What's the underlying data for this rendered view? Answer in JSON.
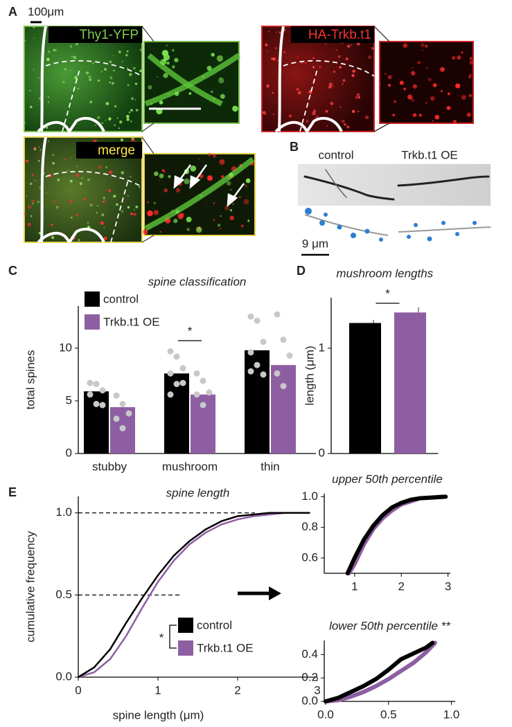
{
  "panel_labels": [
    "A",
    "B",
    "C",
    "D",
    "E"
  ],
  "panel_a": {
    "scale_bar": "100μm",
    "thy1_label": "Thy1-YFP",
    "ha_label": "HA-Trkb.t1",
    "merge_label": "merge"
  },
  "panel_b": {
    "control": "control",
    "oe": "Trkb.t1 OE",
    "scale_bar": "9 μm"
  },
  "chart_data": [
    {
      "type": "bar",
      "title": "spine classification",
      "ylabel": "total spines",
      "categories": [
        "stubby",
        "mushroom",
        "thin"
      ],
      "series": [
        {
          "name": "control",
          "color": "#000000",
          "values": [
            5.9,
            7.6,
            9.8
          ],
          "points": [
            [
              6.7,
              6.6,
              6.0,
              5.6,
              4.7,
              4.6
            ],
            [
              9.7,
              9.2,
              8.1,
              7.6,
              6.6,
              6.7,
              5.6
            ],
            [
              13.0,
              12.6,
              10.6,
              9.6,
              8.4,
              7.5,
              7.8
            ]
          ]
        },
        {
          "name": "Trkb.t1 OE",
          "color": "#8e5ea2",
          "values": [
            4.4,
            5.6,
            8.4
          ],
          "points": [
            [
              5.5,
              4.7,
              3.8,
              3.3,
              2.4
            ],
            [
              7.6,
              6.9,
              5.8,
              5.6,
              4.6
            ],
            [
              13.2,
              10.8,
              9.3,
              7.6,
              6.4
            ]
          ]
        }
      ],
      "point_color": "#c8c8c8",
      "ylim": [
        0,
        14
      ],
      "yticks": [
        0,
        5,
        10
      ],
      "legend": "upper left",
      "annotations": [
        "*"
      ]
    },
    {
      "type": "bar",
      "title": "mushroom lengths",
      "ylabel": "length (μm)",
      "categories": [
        null,
        null
      ],
      "values": [
        1.24,
        1.34
      ],
      "errors": [
        0.03,
        0.05
      ],
      "colors": [
        "#000000",
        "#8e5ea2"
      ],
      "ylim": [
        0,
        1.48
      ],
      "yticks": [
        0,
        1
      ],
      "annotations": [
        "*"
      ]
    },
    {
      "type": "line",
      "title": "spine length",
      "xlabel": "spine length (μm)",
      "ylabel": "cumulative frequency",
      "series": [
        {
          "name": "control",
          "color": "#000000",
          "x": [
            0,
            0.2,
            0.4,
            0.6,
            0.8,
            1.0,
            1.2,
            1.4,
            1.6,
            1.8,
            2.0,
            2.2,
            2.4,
            2.6,
            2.9
          ],
          "values": [
            0,
            0.06,
            0.17,
            0.33,
            0.48,
            0.62,
            0.74,
            0.83,
            0.9,
            0.95,
            0.98,
            0.99,
            1.0,
            1.0,
            1.0
          ]
        },
        {
          "name": "Trkb.t1 OE",
          "color": "#8e5ea2",
          "x": [
            0,
            0.2,
            0.4,
            0.6,
            0.8,
            1.0,
            1.2,
            1.4,
            1.6,
            1.8,
            2.0,
            2.2,
            2.4,
            2.6,
            2.8
          ],
          "values": [
            0,
            0.03,
            0.11,
            0.25,
            0.42,
            0.58,
            0.71,
            0.81,
            0.88,
            0.93,
            0.96,
            0.98,
            0.99,
            1.0,
            1.0
          ]
        }
      ],
      "hlines": [
        1.0,
        0.5
      ],
      "xlim": [
        0,
        3
      ],
      "xticks": [
        0,
        1,
        2,
        3
      ],
      "ylim": [
        0,
        1.1
      ],
      "yticks": [
        {
          "value": 0,
          "label": "0.0"
        },
        0.5,
        {
          "value": 1,
          "label": "1.0"
        }
      ],
      "legend": "lower right",
      "annotations": [
        "*"
      ]
    },
    {
      "type": "line",
      "title": "upper 50th percentile",
      "series": [
        {
          "name": "control",
          "color": "#000000",
          "x": [
            0.85,
            1.0,
            1.2,
            1.4,
            1.6,
            1.8,
            2.0,
            2.2,
            2.4,
            2.95
          ],
          "values": [
            0.5,
            0.6,
            0.72,
            0.81,
            0.88,
            0.93,
            0.96,
            0.98,
            0.99,
            1.0
          ]
        },
        {
          "name": "Trkb.t1 OE",
          "color": "#8e5ea2",
          "x": [
            0.88,
            1.0,
            1.2,
            1.4,
            1.6,
            1.8,
            2.0,
            2.2,
            2.4,
            2.9
          ],
          "values": [
            0.5,
            0.56,
            0.69,
            0.79,
            0.86,
            0.91,
            0.95,
            0.97,
            0.99,
            1.0
          ]
        }
      ],
      "xlim": [
        0.35,
        3.05
      ],
      "xticks": [
        1,
        2,
        3
      ],
      "ylim": [
        0.5,
        1.02
      ],
      "yticks": [
        0.6,
        0.8,
        {
          "value": 1,
          "label": "1.0"
        }
      ]
    },
    {
      "type": "line",
      "title": "lower 50th percentile **",
      "series": [
        {
          "name": "control",
          "color": "#000000",
          "x": [
            0,
            0.1,
            0.2,
            0.3,
            0.4,
            0.5,
            0.6,
            0.7,
            0.8,
            0.85
          ],
          "values": [
            0,
            0.03,
            0.08,
            0.13,
            0.19,
            0.27,
            0.36,
            0.41,
            0.46,
            0.5
          ]
        },
        {
          "name": "Trkb.t1 OE",
          "color": "#8e5ea2",
          "x": [
            0,
            0.1,
            0.2,
            0.3,
            0.4,
            0.5,
            0.6,
            0.7,
            0.8,
            0.87
          ],
          "values": [
            0,
            0.01,
            0.04,
            0.08,
            0.13,
            0.19,
            0.26,
            0.33,
            0.42,
            0.5
          ]
        }
      ],
      "xlim": [
        0,
        1.03
      ],
      "xticks": [
        {
          "value": 0,
          "label": "0.0"
        },
        0.5,
        {
          "value": 1,
          "label": "1.0"
        }
      ],
      "ylim": [
        0,
        0.52
      ],
      "yticks": [
        {
          "value": 0,
          "label": "0.0"
        },
        0.2,
        0.4
      ]
    }
  ]
}
